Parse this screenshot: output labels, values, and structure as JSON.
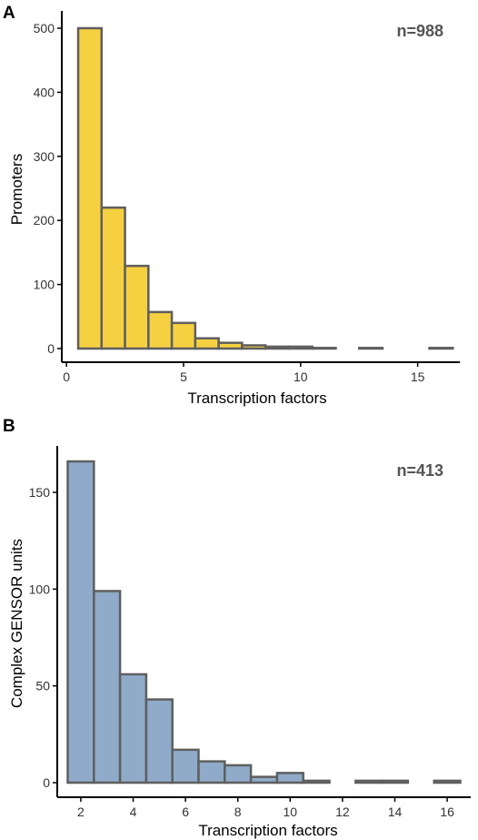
{
  "colors": {
    "panel_a_fill": "#f5d142",
    "panel_b_fill": "#8fabc9",
    "bar_outline": "#5f5f5f"
  },
  "chart_data": [
    {
      "type": "bar",
      "panel_label": "A",
      "annotation": "n=988",
      "xlabel": "Transcription factors",
      "ylabel": "Promoters",
      "x_ticks": [
        0,
        5,
        10,
        15
      ],
      "y_ticks": [
        0,
        100,
        200,
        300,
        400,
        500
      ],
      "xlim": [
        -0.2,
        16.8
      ],
      "ylim": [
        0,
        500
      ],
      "categories": [
        1,
        2,
        3,
        4,
        5,
        6,
        7,
        8,
        9,
        10,
        11,
        12,
        13,
        14,
        15,
        16
      ],
      "values": [
        500,
        220,
        129,
        57,
        40,
        16,
        9,
        5,
        3,
        3,
        1,
        0,
        1,
        0,
        0,
        1
      ]
    },
    {
      "type": "bar",
      "panel_label": "B",
      "annotation": "n=413",
      "xlabel": "Transcription factors",
      "ylabel": "Complex GENSOR units",
      "x_ticks": [
        2,
        4,
        6,
        8,
        10,
        12,
        14,
        16
      ],
      "y_ticks": [
        0,
        50,
        100,
        150
      ],
      "xlim": [
        1.1,
        16.9
      ],
      "ylim": [
        0,
        166
      ],
      "categories": [
        2,
        3,
        4,
        5,
        6,
        7,
        8,
        9,
        10,
        11,
        12,
        13,
        14,
        15,
        16
      ],
      "values": [
        166,
        99,
        56,
        43,
        17,
        11,
        9,
        3,
        5,
        1,
        0,
        1,
        1,
        0,
        1
      ]
    }
  ]
}
